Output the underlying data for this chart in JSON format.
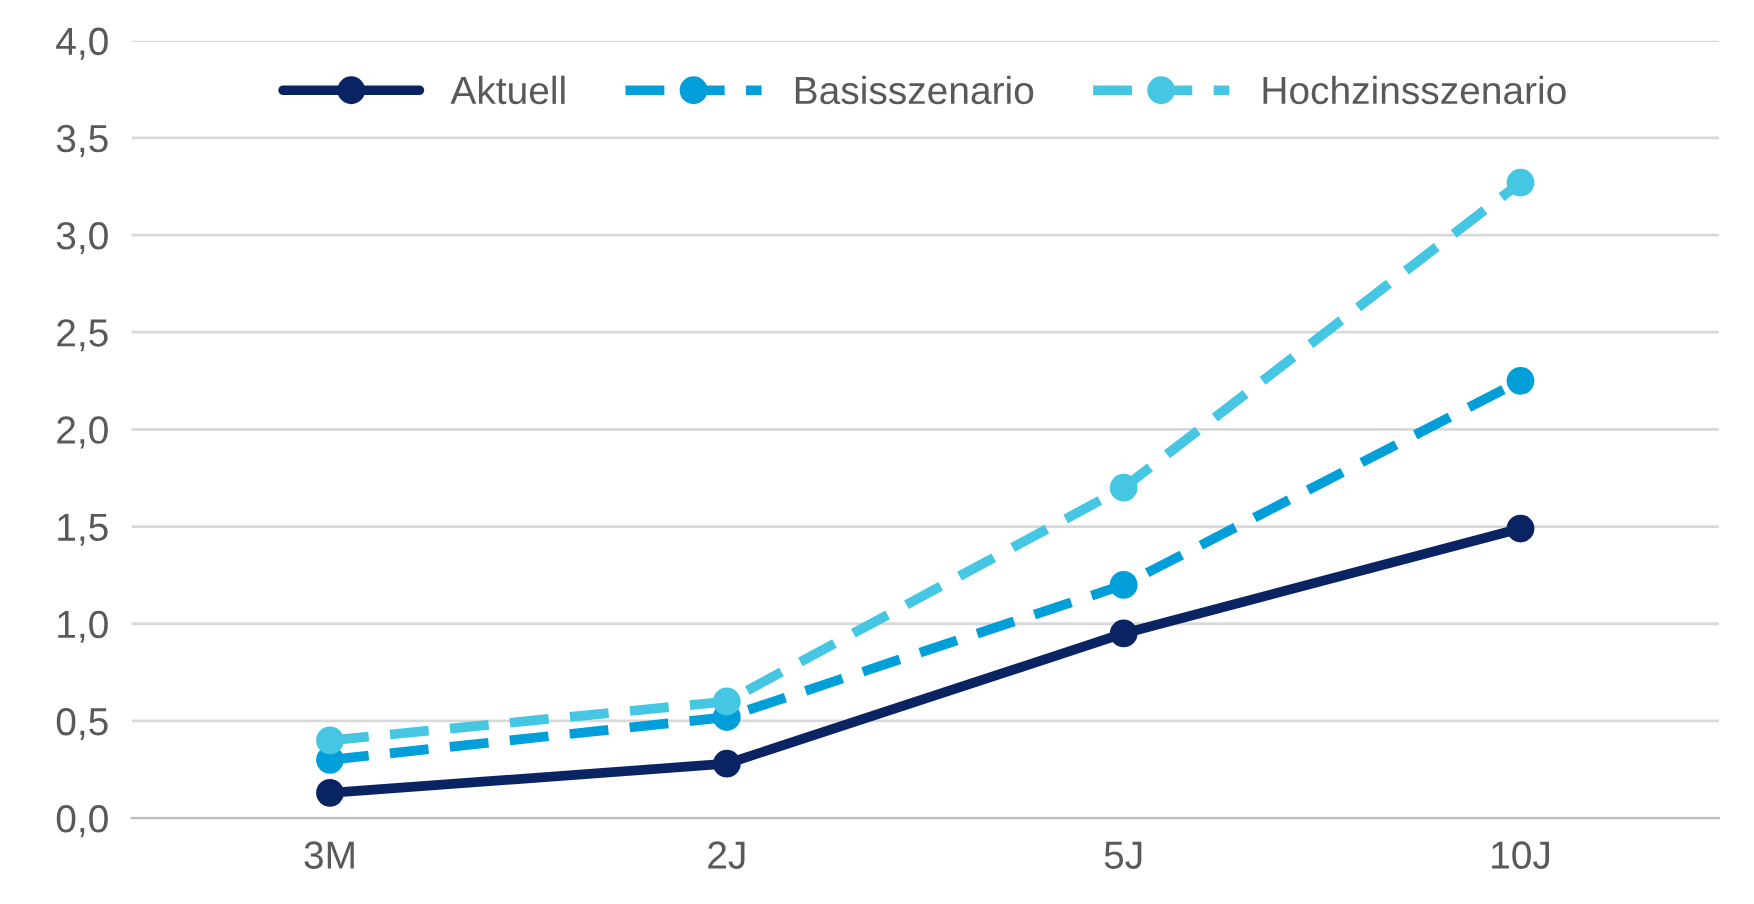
{
  "chart_data": {
    "type": "line",
    "categories": [
      "3M",
      "2J",
      "5J",
      "10J"
    ],
    "series": [
      {
        "name": "Aktuell",
        "color": "#0a2463",
        "values": [
          0.13,
          0.28,
          0.95,
          1.49
        ],
        "line_style": "solid"
      },
      {
        "name": "Basisszenario",
        "color": "#009fda",
        "values": [
          0.3,
          0.52,
          1.2,
          2.25
        ],
        "line_style": "dashed"
      },
      {
        "name": "Hochzinsszenario",
        "color": "#45c6e3",
        "values": [
          0.4,
          0.6,
          1.7,
          3.27
        ],
        "line_style": "dashed"
      }
    ],
    "ylim": [
      0,
      4
    ],
    "yticks": [
      {
        "value": 0,
        "label": "0,0"
      },
      {
        "value": 0.5,
        "label": "0,5"
      },
      {
        "value": 1,
        "label": "1,0"
      },
      {
        "value": 1.5,
        "label": "1,5"
      },
      {
        "value": 2,
        "label": "2,0"
      },
      {
        "value": 2.5,
        "label": "2,5"
      },
      {
        "value": 3,
        "label": "3,0"
      },
      {
        "value": 3.5,
        "label": "3,5"
      },
      {
        "value": 4,
        "label": "4,0"
      }
    ],
    "grid": "y",
    "legend": "top",
    "marker": "circle"
  }
}
